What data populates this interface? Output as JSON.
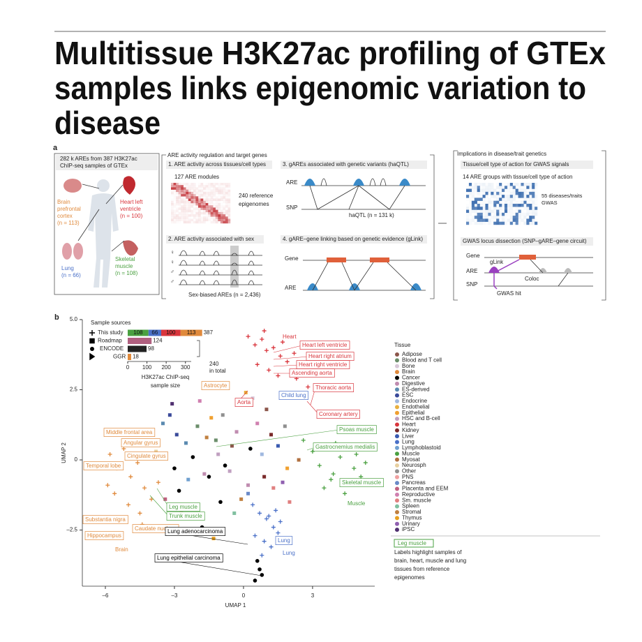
{
  "header": {
    "title_lines": [
      "Multitissue H3K27ac profiling of GTEx",
      "samples links epigenomic variation to",
      "disease"
    ]
  },
  "panel_a": {
    "label": "a",
    "overview_lines": [
      "282 k AREs from 387 H3K27ac",
      "ChIP-seq samples of GTEx"
    ],
    "tissues": [
      {
        "lines": [
          "Brain",
          "prefrontal",
          "cortex"
        ],
        "n": "(n = 113)",
        "color": "#e08a3c"
      },
      {
        "lines": [
          "Heart left",
          "ventricle"
        ],
        "n": "(n = 100)",
        "color": "#d9353c"
      },
      {
        "lines": [
          "Lung"
        ],
        "n": "(n = 66)",
        "color": "#4a70c8"
      },
      {
        "lines": [
          "Skeletal",
          "muscle"
        ],
        "n": "(n = 108)",
        "color": "#4aa040"
      }
    ],
    "regulation": {
      "title": "ARE activity regulation and target genes",
      "p1": {
        "title": "1. ARE activity across tissues/cell types",
        "modules": "127 ARE modules",
        "epi_lines": [
          "240 reference",
          "epigenomes"
        ]
      },
      "p2": {
        "title": "2. ARE activity associated with sex",
        "sex_symbols": [
          "♀",
          "♀",
          "♂",
          "♂"
        ],
        "caption": "Sex-biased AREs (n = 2,436)"
      },
      "p3": {
        "title": "3. gAREs associated with genetic variants (haQTL)",
        "are": "ARE",
        "snp": "SNP",
        "caption": "haQTL (n = 131 k)"
      },
      "p4": {
        "title": "4. gARE–gene linking based on genetic evidence (gLink)",
        "gene": "Gene",
        "are": "ARE"
      }
    },
    "implications": {
      "title": "Implications in disease/trait genetics",
      "p1": {
        "title": "Tissue/cell type of action for GWAS signals",
        "groups": "14 ARE groups with tissue/cell type of action",
        "gwas_lines": [
          "55 diseases/traits",
          "GWAS"
        ]
      },
      "p2": {
        "title": "GWAS locus dissection (SNP–gARE–gene circuit)",
        "gene": "Gene",
        "are": "ARE",
        "snp": "SNP",
        "glink": "gLink",
        "coloc": "Coloc",
        "hit": "GWAS hit"
      }
    }
  },
  "panel_b": {
    "label": "b",
    "legend_title": "Tissue",
    "note_box": "Leg muscle",
    "note_lines": [
      "Labels highlight samples of",
      "brain, heart, muscle and lung",
      "tissues from reference",
      "epigenomes"
    ]
  },
  "chart_data": [
    {
      "type": "scatter",
      "xlabel": "UMAP 1",
      "ylabel": "UMAP 2",
      "xlim": [
        -7,
        5.7
      ],
      "ylim": [
        -4.5,
        5
      ],
      "xticks": [
        {
          "value": -6,
          "label": "–6"
        },
        {
          "value": -3,
          "label": "–3"
        },
        0,
        3
      ],
      "yticks": [
        {
          "value": -2.5,
          "label": "–2.5"
        },
        0,
        {
          "value": 2.5,
          "label": "2.5"
        },
        {
          "value": 5,
          "label": "5.0"
        }
      ],
      "series": [
        {
          "name": "Adipose",
          "color": "#8c564b",
          "marker": "square",
          "x": [
            -0.5,
            1.0
          ],
          "y": [
            0.5,
            1.8
          ]
        },
        {
          "name": "Blood and T cell",
          "color": "#6b8e6b",
          "marker": "square",
          "x": [
            -2.0,
            -1.2
          ],
          "y": [
            1.2,
            0.7
          ]
        },
        {
          "name": "Bone",
          "color": "#d8c8d8",
          "marker": "square",
          "x": [
            0.4
          ],
          "y": [
            2.2
          ]
        },
        {
          "name": "Brain",
          "color": "#e08a3c",
          "marker": "plus",
          "x": [
            -5.8,
            -5.5,
            -5.2,
            -4.9,
            -4.6,
            -4.3,
            -5.6,
            -5.0,
            -4.5,
            -4.0,
            -3.7,
            -5.3,
            -4.8,
            -4.2,
            -5.9,
            -4.4
          ],
          "y": [
            0.2,
            -0.3,
            0.4,
            -0.6,
            -0.1,
            -1.0,
            -1.2,
            -1.6,
            -1.9,
            -1.4,
            -0.8,
            -2.1,
            0.6,
            0.1,
            -0.9,
            -2.3
          ]
        },
        {
          "name": "Cancer",
          "color": "#000000",
          "marker": "circle",
          "x": [
            -3.0,
            -2.2,
            -1.5,
            -0.8,
            0.3,
            -2.8,
            -1.0,
            0.6,
            0.7,
            0.8,
            0.5,
            -1.8
          ],
          "y": [
            -0.3,
            0.1,
            -0.6,
            -0.2,
            0.4,
            -1.1,
            -1.5,
            -3.6,
            -3.9,
            -4.1,
            -4.3,
            -2.4
          ]
        },
        {
          "name": "Digestive",
          "color": "#c08cb0",
          "marker": "square",
          "x": [
            -1.7,
            -0.3,
            0.2
          ],
          "y": [
            -0.5,
            1.0,
            -0.9
          ]
        },
        {
          "name": "ES-derived",
          "color": "#5a8ab0",
          "marker": "square",
          "x": [
            -2.5,
            -3.5
          ],
          "y": [
            0.6,
            1.3
          ]
        },
        {
          "name": "ESC",
          "color": "#3a4a9a",
          "marker": "square",
          "x": [
            -3.2,
            -2.9
          ],
          "y": [
            1.6,
            0.9
          ]
        },
        {
          "name": "Endocrine",
          "color": "#a0b8e0",
          "marker": "square",
          "x": [
            0.8
          ],
          "y": [
            0.2
          ]
        },
        {
          "name": "Endothelial",
          "color": "#e8b040",
          "marker": "square",
          "x": [
            -0.2,
            0.1
          ],
          "y": [
            2.0,
            2.4
          ]
        },
        {
          "name": "Epithelial",
          "color": "#f0a030",
          "marker": "square",
          "x": [
            -1.4,
            1.9
          ],
          "y": [
            1.5,
            -0.3
          ]
        },
        {
          "name": "HSC and B-cell",
          "color": "#c0a0c0",
          "marker": "square",
          "x": [
            -1.1,
            -0.6
          ],
          "y": [
            0.2,
            -0.4
          ]
        },
        {
          "name": "Heart",
          "color": "#d9353c",
          "marker": "plus",
          "x": [
            0.2,
            0.5,
            0.8,
            1.0,
            1.3,
            1.6,
            1.9,
            2.2,
            0.6,
            1.1,
            1.5,
            2.5,
            2.8,
            0.9,
            1.7,
            2.3
          ],
          "y": [
            4.4,
            4.1,
            4.3,
            3.9,
            4.0,
            3.7,
            3.5,
            3.8,
            3.4,
            3.2,
            3.0,
            3.1,
            2.6,
            4.6,
            4.2,
            2.9
          ]
        },
        {
          "name": "Kidney",
          "color": "#7a2a2a",
          "marker": "square",
          "x": [
            0.9,
            1.2
          ],
          "y": [
            -0.6,
            0.9
          ]
        },
        {
          "name": "Liver",
          "color": "#3a5ab0",
          "marker": "square",
          "x": [
            1.5
          ],
          "y": [
            0.5
          ]
        },
        {
          "name": "Lung",
          "color": "#4a70c8",
          "marker": "plus",
          "x": [
            0.4,
            0.7,
            1.0,
            1.3,
            1.6,
            0.5,
            0.9,
            1.2,
            1.5,
            0.8,
            1.1,
            1.4
          ],
          "y": [
            -1.6,
            -1.9,
            -2.1,
            -2.4,
            -2.2,
            -2.7,
            -2.9,
            -3.1,
            -2.6,
            -3.4,
            -2.0,
            -1.8
          ]
        },
        {
          "name": "Lymphoblastoid",
          "color": "#70a0d0",
          "marker": "square",
          "x": [
            -2.4
          ],
          "y": [
            -0.7
          ]
        },
        {
          "name": "Muscle",
          "color": "#4aa040",
          "marker": "plus",
          "x": [
            3.0,
            3.3,
            3.6,
            3.9,
            4.2,
            4.5,
            4.8,
            5.1,
            3.5,
            4.0,
            4.4,
            4.9,
            5.3,
            3.8,
            4.6,
            2.6
          ],
          "y": [
            0.3,
            -0.2,
            0.4,
            -0.5,
            0.1,
            -0.8,
            -0.3,
            -0.6,
            -1.0,
            0.6,
            -1.2,
            0.2,
            -0.1,
            -0.7,
            0.5,
            0.7
          ]
        },
        {
          "name": "Myosat",
          "color": "#b07040",
          "marker": "square",
          "x": [
            2.4
          ],
          "y": [
            0.0
          ]
        },
        {
          "name": "Neurosph",
          "color": "#e8d0a0",
          "marker": "square",
          "x": [
            -3.8
          ],
          "y": [
            0.3
          ]
        },
        {
          "name": "Other",
          "color": "#909090",
          "marker": "square",
          "x": [
            -0.9,
            1.8
          ],
          "y": [
            1.6,
            1.2
          ]
        },
        {
          "name": "PNS",
          "color": "#f0a0a0",
          "marker": "square",
          "x": [
            -2.7
          ],
          "y": [
            -1.8
          ]
        },
        {
          "name": "Pancreas",
          "color": "#6a8ac8",
          "marker": "square",
          "x": [
            0.2
          ],
          "y": [
            -1.2
          ]
        },
        {
          "name": "Placenta and EEM",
          "color": "#c06080",
          "marker": "square",
          "x": [
            -3.4,
            -2.1
          ],
          "y": [
            -1.4,
            -2.0
          ]
        },
        {
          "name": "Reproductive",
          "color": "#d080b0",
          "marker": "square",
          "x": [
            -1.9,
            0.6
          ],
          "y": [
            2.1,
            1.3
          ]
        },
        {
          "name": "Sm. muscle",
          "color": "#e08080",
          "marker": "square",
          "x": [
            1.3,
            2.0
          ],
          "y": [
            -1.0,
            -1.5
          ]
        },
        {
          "name": "Spleen",
          "color": "#80c0a0",
          "marker": "square",
          "x": [
            -0.4
          ],
          "y": [
            -1.9
          ]
        },
        {
          "name": "Stromal",
          "color": "#c08040",
          "marker": "square",
          "x": [
            -1.6,
            -0.1
          ],
          "y": [
            0.8,
            -1.4
          ]
        },
        {
          "name": "Thymus",
          "color": "#e8a020",
          "marker": "square",
          "x": [
            -1.3
          ],
          "y": [
            -2.8
          ]
        },
        {
          "name": "Urinary",
          "color": "#9060b0",
          "marker": "square",
          "x": [
            1.7
          ],
          "y": [
            -0.8
          ]
        },
        {
          "name": "iPSC",
          "color": "#503070",
          "marker": "square",
          "x": [
            -3.1
          ],
          "y": [
            2.0
          ]
        }
      ],
      "annotations": [
        {
          "text": "Heart",
          "color": "#d9353c",
          "boxed": false
        },
        {
          "text": "Heart left ventricle",
          "color": "#d9353c",
          "boxed": true
        },
        {
          "text": "Heart right atrium",
          "color": "#d9353c",
          "boxed": true
        },
        {
          "text": "Heart right ventricle",
          "color": "#d9353c",
          "boxed": true
        },
        {
          "text": "Ascending aorta",
          "color": "#d9353c",
          "boxed": true
        },
        {
          "text": "Astrocyte",
          "color": "#e08a3c",
          "boxed": true
        },
        {
          "text": "Thoracic aorta",
          "color": "#d9353c",
          "boxed": true
        },
        {
          "text": "Child lung",
          "color": "#4a70c8",
          "boxed": true
        },
        {
          "text": "Aorta",
          "color": "#d9353c",
          "boxed": true
        },
        {
          "text": "Coronary artery",
          "color": "#d9353c",
          "boxed": true
        },
        {
          "text": "Middle frontal area",
          "color": "#e08a3c",
          "boxed": true
        },
        {
          "text": "Psoas muscle",
          "color": "#4aa040",
          "boxed": true
        },
        {
          "text": "Angular gyrus",
          "color": "#e08a3c",
          "boxed": true
        },
        {
          "text": "Gastrocnemius medialis",
          "color": "#4aa040",
          "boxed": true
        },
        {
          "text": "Cingulate gyrus",
          "color": "#e08a3c",
          "boxed": true
        },
        {
          "text": "Temporal lobe",
          "color": "#e08a3c",
          "boxed": true
        },
        {
          "text": "Skeletal muscle",
          "color": "#4aa040",
          "boxed": true
        },
        {
          "text": "Muscle",
          "color": "#4aa040",
          "boxed": false
        },
        {
          "text": "Leg muscle",
          "color": "#4aa040",
          "boxed": true
        },
        {
          "text": "Trunk muscle",
          "color": "#4aa040",
          "boxed": true
        },
        {
          "text": "Substantia nigra",
          "color": "#e08a3c",
          "boxed": true
        },
        {
          "text": "Caudate nucleus",
          "color": "#e08a3c",
          "boxed": true
        },
        {
          "text": "Hippocampus",
          "color": "#e08a3c",
          "boxed": true
        },
        {
          "text": "Lung adenocarcinoma",
          "color": "#000000",
          "boxed": true
        },
        {
          "text": "Lung",
          "color": "#4a70c8",
          "boxed": true
        },
        {
          "text": "Lung",
          "color": "#4a70c8",
          "boxed": false
        },
        {
          "text": "Brain",
          "color": "#e08a3c",
          "boxed": false
        },
        {
          "text": "Lung epithelial carcinoma",
          "color": "#000000",
          "boxed": true
        }
      ]
    },
    {
      "type": "stacked-hbar",
      "title": "Sample sources",
      "categories": [
        "This study",
        "Roadmap",
        "ENCODE",
        "GGR"
      ],
      "segments": [
        [
          108,
          66,
          100,
          113
        ],
        [
          124
        ],
        [
          98
        ],
        [
          18
        ]
      ],
      "segment_colors": [
        [
          "#4aa040",
          "#4a70c8",
          "#d9353c",
          "#e08a3c"
        ],
        [
          "#b06080"
        ],
        [
          "#222222"
        ],
        [
          "#e08a3c"
        ]
      ],
      "totals": [
        387,
        124,
        98,
        18
      ],
      "total_note_lines": [
        "240",
        "in total"
      ],
      "xlabel_lines": [
        "H3K27ac ChIP-seq",
        "sample size"
      ],
      "xlim": [
        0,
        330
      ],
      "xticks": [
        0,
        100,
        200,
        300
      ]
    }
  ]
}
